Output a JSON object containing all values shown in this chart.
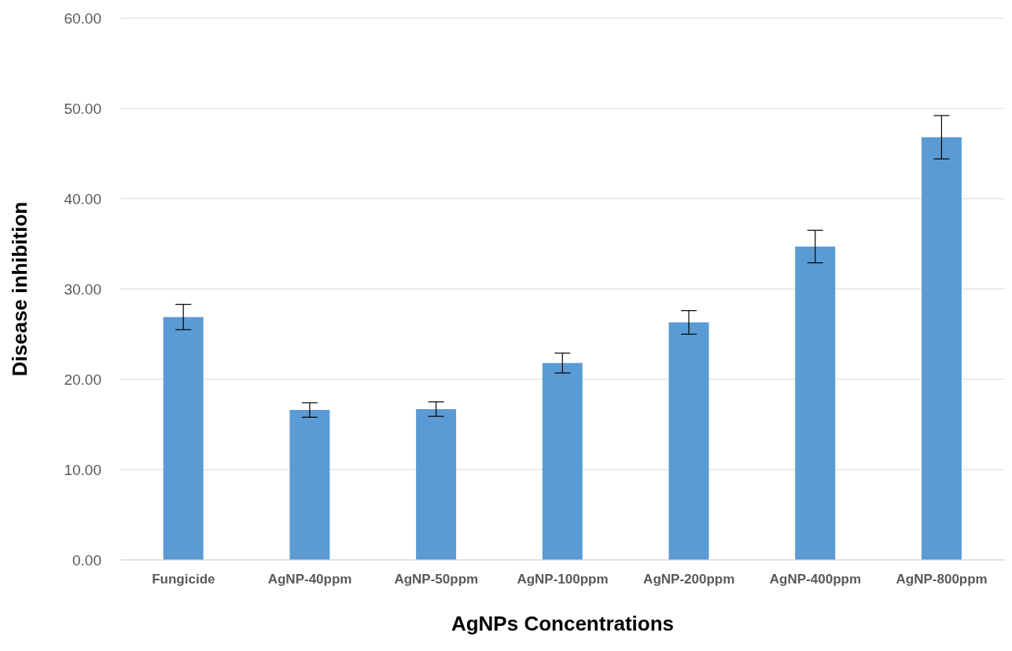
{
  "chart_data": {
    "type": "bar",
    "xlabel": "AgNPs Concentrations",
    "ylabel": "Disease inhibition",
    "categories": [
      "Fungicide",
      "AgNP-40ppm",
      "AgNP-50ppm",
      "AgNP-100ppm",
      "AgNP-200ppm",
      "AgNP-400ppm",
      "AgNP-800ppm"
    ],
    "values": [
      26.9,
      16.6,
      16.7,
      21.8,
      26.3,
      34.7,
      46.8
    ],
    "errors": [
      1.4,
      0.8,
      0.8,
      1.1,
      1.3,
      1.8,
      2.4
    ],
    "color": "#5b9bd5",
    "ylim": [
      0,
      60
    ],
    "yticks": [
      {
        "value": 0,
        "label": "0.00"
      },
      {
        "value": 10,
        "label": "10.00"
      },
      {
        "value": 20,
        "label": "20.00"
      },
      {
        "value": 30,
        "label": "30.00"
      },
      {
        "value": 40,
        "label": "40.00"
      },
      {
        "value": 50,
        "label": "50.00"
      },
      {
        "value": 60,
        "label": "60.00"
      }
    ],
    "grid": "y"
  }
}
